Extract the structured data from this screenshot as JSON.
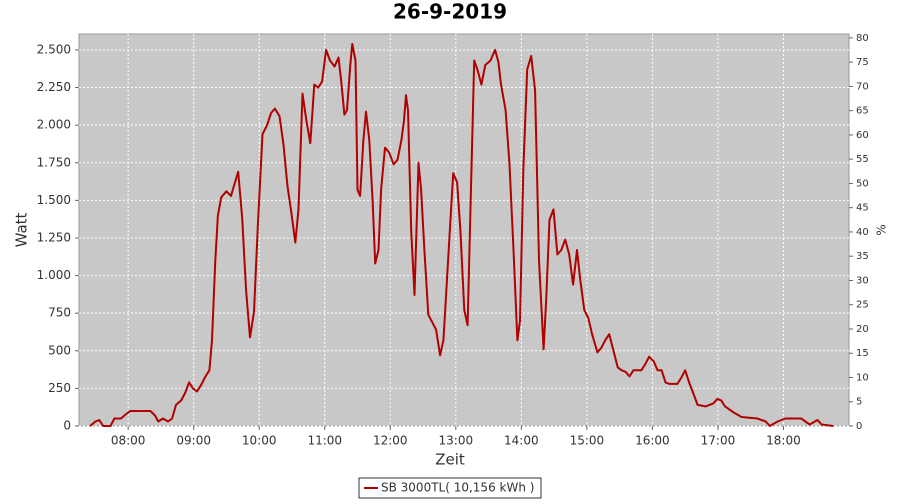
{
  "chart_data": {
    "type": "line",
    "title": "26-9-2019",
    "x_label": "Zeit",
    "y_label": "Watt",
    "y2_label": "%",
    "x": [
      7.42,
      7.5,
      7.56,
      7.62,
      7.73,
      7.79,
      7.89,
      7.97,
      8.03,
      8.34,
      8.41,
      8.46,
      8.53,
      8.61,
      8.67,
      8.73,
      8.81,
      8.87,
      8.93,
      8.99,
      9.05,
      9.11,
      9.18,
      9.24,
      9.28,
      9.33,
      9.37,
      9.42,
      9.5,
      9.57,
      9.63,
      9.68,
      9.74,
      9.8,
      9.86,
      9.92,
      9.98,
      10.05,
      10.12,
      10.18,
      10.24,
      10.31,
      10.37,
      10.43,
      10.49,
      10.55,
      10.6,
      10.66,
      10.72,
      10.78,
      10.84,
      10.9,
      10.96,
      11.02,
      11.08,
      11.15,
      11.21,
      11.25,
      11.3,
      11.34,
      11.39,
      11.42,
      11.47,
      11.5,
      11.54,
      11.59,
      11.63,
      11.68,
      11.73,
      11.77,
      11.82,
      11.86,
      11.92,
      11.98,
      12.05,
      12.11,
      12.17,
      12.21,
      12.24,
      12.27,
      12.32,
      12.37,
      12.43,
      12.47,
      12.52,
      12.58,
      12.64,
      12.7,
      12.76,
      12.81,
      12.85,
      12.9,
      12.96,
      13.02,
      13.07,
      13.13,
      13.18,
      13.22,
      13.28,
      13.33,
      13.39,
      13.45,
      13.53,
      13.6,
      13.65,
      13.69,
      13.76,
      13.82,
      13.88,
      13.94,
      13.98,
      14.03,
      14.09,
      14.15,
      14.21,
      14.27,
      14.34,
      14.38,
      14.43,
      14.49,
      14.55,
      14.61,
      14.67,
      14.73,
      14.79,
      14.85,
      14.9,
      14.96,
      15.02,
      15.08,
      15.16,
      15.22,
      15.28,
      15.34,
      15.4,
      15.47,
      15.53,
      15.59,
      15.65,
      15.71,
      15.83,
      15.89,
      15.95,
      16.02,
      16.08,
      16.14,
      16.2,
      16.26,
      16.38,
      16.44,
      16.5,
      16.56,
      16.63,
      16.69,
      16.81,
      16.93,
      16.99,
      17.05,
      17.11,
      17.24,
      17.36,
      17.6,
      17.73,
      17.79,
      17.91,
      18.03,
      18.27,
      18.4,
      18.52,
      18.58,
      18.76
    ],
    "series": [
      {
        "name": "SB 3000TL( 10,156 kWh )",
        "color": "#b00000",
        "values": [
          0,
          30,
          40,
          0,
          0,
          50,
          50,
          80,
          100,
          100,
          70,
          30,
          50,
          30,
          50,
          140,
          170,
          220,
          290,
          250,
          230,
          270,
          330,
          370,
          570,
          1100,
          1400,
          1520,
          1560,
          1530,
          1620,
          1690,
          1380,
          900,
          590,
          760,
          1340,
          1940,
          2000,
          2080,
          2110,
          2060,
          1870,
          1600,
          1420,
          1220,
          1440,
          2210,
          2030,
          1880,
          2270,
          2250,
          2290,
          2500,
          2430,
          2390,
          2450,
          2300,
          2070,
          2100,
          2400,
          2540,
          2430,
          1570,
          1530,
          1900,
          2090,
          1900,
          1500,
          1080,
          1170,
          1570,
          1850,
          1820,
          1740,
          1770,
          1900,
          2030,
          2200,
          2100,
          1300,
          870,
          1750,
          1570,
          1170,
          740,
          690,
          640,
          470,
          570,
          860,
          1240,
          1680,
          1620,
          1300,
          770,
          670,
          1370,
          2430,
          2370,
          2270,
          2400,
          2430,
          2500,
          2420,
          2270,
          2100,
          1740,
          1170,
          570,
          700,
          1700,
          2370,
          2460,
          2230,
          1100,
          510,
          840,
          1370,
          1440,
          1140,
          1170,
          1240,
          1140,
          940,
          1170,
          970,
          770,
          720,
          610,
          490,
          520,
          570,
          610,
          510,
          390,
          370,
          360,
          330,
          370,
          370,
          410,
          460,
          430,
          370,
          370,
          290,
          280,
          280,
          320,
          370,
          290,
          210,
          140,
          130,
          150,
          180,
          170,
          130,
          90,
          60,
          50,
          30,
          0,
          30,
          50,
          50,
          10,
          40,
          10,
          0
        ]
      }
    ],
    "xlim": [
      7.25,
      19.0
    ],
    "xticks": [
      {
        "value": 8,
        "label": "08:00"
      },
      {
        "value": 9,
        "label": "09:00"
      },
      {
        "value": 10,
        "label": "10:00"
      },
      {
        "value": 11,
        "label": "11:00"
      },
      {
        "value": 12,
        "label": "12:00"
      },
      {
        "value": 13,
        "label": "13:00"
      },
      {
        "value": 14,
        "label": "14:00"
      },
      {
        "value": 15,
        "label": "15:00"
      },
      {
        "value": 16,
        "label": "16:00"
      },
      {
        "value": 17,
        "label": "17:00"
      },
      {
        "value": 18,
        "label": "18:00"
      }
    ],
    "ylim": [
      0,
      2606
    ],
    "yticks": [
      0,
      250,
      500,
      750,
      {
        "value": 1000,
        "label": "1.000"
      },
      {
        "value": 1250,
        "label": "1.250"
      },
      {
        "value": 1500,
        "label": "1.500"
      },
      {
        "value": 1750,
        "label": "1.750"
      },
      {
        "value": 2000,
        "label": "2.000"
      },
      {
        "value": 2250,
        "label": "2.250"
      },
      {
        "value": 2500,
        "label": "2.500"
      }
    ],
    "y2lim": [
      0,
      80.8
    ],
    "y2ticks": [
      0,
      5,
      10,
      15,
      20,
      25,
      30,
      35,
      40,
      45,
      50,
      55,
      60,
      65,
      70,
      75,
      80
    ],
    "grid": true
  }
}
